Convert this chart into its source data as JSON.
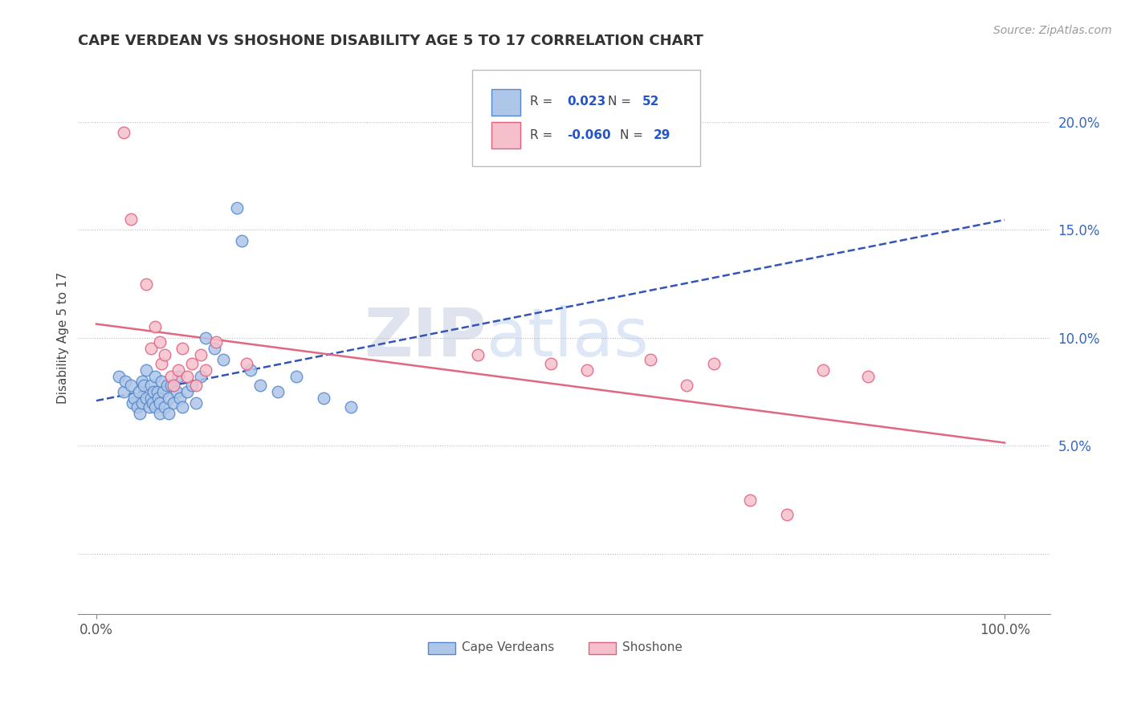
{
  "title": "CAPE VERDEAN VS SHOSHONE DISABILITY AGE 5 TO 17 CORRELATION CHART",
  "source": "Source: ZipAtlas.com",
  "ylabel": "Disability Age 5 to 17",
  "xlim": [
    -0.02,
    1.05
  ],
  "ylim": [
    -0.028,
    0.228
  ],
  "yticks": [
    0.0,
    0.05,
    0.1,
    0.15,
    0.2
  ],
  "ytick_labels": [
    "",
    "5.0%",
    "10.0%",
    "15.0%",
    "20.0%"
  ],
  "xticks": [
    0.0,
    1.0
  ],
  "xtick_labels": [
    "0.0%",
    "100.0%"
  ],
  "cape_verdean_R": 0.023,
  "cape_verdean_N": 52,
  "shoshone_R": -0.06,
  "shoshone_N": 29,
  "cape_verdean_color": "#aec6e8",
  "cape_verdean_edge": "#5588cc",
  "shoshone_color": "#f5c0cc",
  "shoshone_edge": "#e06080",
  "trend_cv_color": "#3355bb",
  "trend_sh_color": "#e06880",
  "watermark_zip_color": "#c8d8ee",
  "watermark_atlas_color": "#b0c8e8",
  "cape_verdean_x": [
    0.025,
    0.03,
    0.032,
    0.038,
    0.04,
    0.042,
    0.045,
    0.047,
    0.048,
    0.05,
    0.05,
    0.052,
    0.055,
    0.055,
    0.058,
    0.06,
    0.06,
    0.062,
    0.063,
    0.065,
    0.065,
    0.067,
    0.068,
    0.07,
    0.07,
    0.072,
    0.073,
    0.075,
    0.078,
    0.08,
    0.08,
    0.082,
    0.085,
    0.088,
    0.09,
    0.092,
    0.095,
    0.1,
    0.105,
    0.11,
    0.115,
    0.12,
    0.13,
    0.14,
    0.155,
    0.16,
    0.17,
    0.18,
    0.2,
    0.22,
    0.25,
    0.28
  ],
  "cape_verdean_y": [
    0.082,
    0.075,
    0.08,
    0.078,
    0.07,
    0.072,
    0.068,
    0.075,
    0.065,
    0.07,
    0.08,
    0.078,
    0.072,
    0.085,
    0.068,
    0.072,
    0.078,
    0.07,
    0.075,
    0.068,
    0.082,
    0.075,
    0.072,
    0.065,
    0.07,
    0.08,
    0.075,
    0.068,
    0.078,
    0.065,
    0.072,
    0.078,
    0.07,
    0.075,
    0.082,
    0.072,
    0.068,
    0.075,
    0.078,
    0.07,
    0.082,
    0.1,
    0.095,
    0.09,
    0.16,
    0.145,
    0.085,
    0.078,
    0.075,
    0.082,
    0.072,
    0.068
  ],
  "shoshone_x": [
    0.03,
    0.038,
    0.055,
    0.06,
    0.065,
    0.07,
    0.072,
    0.075,
    0.082,
    0.085,
    0.09,
    0.095,
    0.1,
    0.105,
    0.11,
    0.115,
    0.12,
    0.132,
    0.165,
    0.42,
    0.5,
    0.54,
    0.61,
    0.65,
    0.68,
    0.72,
    0.76,
    0.8,
    0.85
  ],
  "shoshone_y": [
    0.195,
    0.155,
    0.125,
    0.095,
    0.105,
    0.098,
    0.088,
    0.092,
    0.082,
    0.078,
    0.085,
    0.095,
    0.082,
    0.088,
    0.078,
    0.092,
    0.085,
    0.098,
    0.088,
    0.092,
    0.088,
    0.085,
    0.09,
    0.078,
    0.088,
    0.025,
    0.018,
    0.085,
    0.082
  ]
}
